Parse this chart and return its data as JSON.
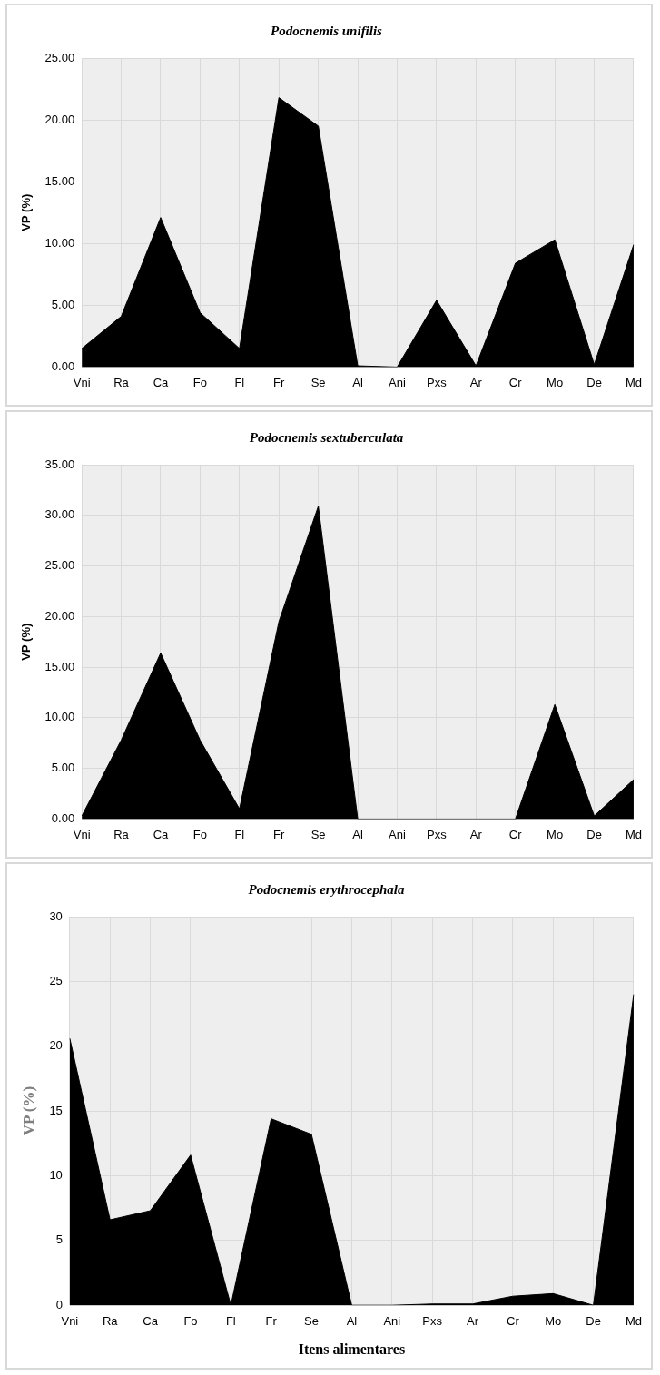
{
  "chart_data": [
    {
      "type": "area",
      "title": "Podocnemis unifilis",
      "ylabel": "VP (%)",
      "categories": [
        "Vni",
        "Ra",
        "Ca",
        "Fo",
        "Fl",
        "Fr",
        "Se",
        "Al",
        "Ani",
        "Pxs",
        "Ar",
        "Cr",
        "Mo",
        "De",
        "Md"
      ],
      "series": [
        {
          "color": "#000000",
          "values": [
            1.5,
            4.1,
            12.1,
            4.4,
            1.5,
            21.8,
            19.5,
            0.1,
            0,
            5.4,
            0.1,
            8.4,
            10.3,
            0.2,
            9.9
          ]
        }
      ],
      "ylim": [
        0,
        25
      ],
      "yticks": [
        {
          "value": 0,
          "label": "0.00"
        },
        {
          "value": 5,
          "label": "5.00"
        },
        {
          "value": 10,
          "label": "10.00"
        },
        {
          "value": 15,
          "label": "15.00"
        },
        {
          "value": 20,
          "label": "20.00"
        },
        {
          "value": 25,
          "label": "25.00"
        }
      ],
      "grid": true,
      "legend": false
    },
    {
      "type": "area",
      "title": "Podocnemis sextuberculata",
      "ylabel": "VP (%)",
      "categories": [
        "Vni",
        "Ra",
        "Ca",
        "Fo",
        "Fl",
        "Fr",
        "Se",
        "Al",
        "Ani",
        "Pxs",
        "Ar",
        "Cr",
        "Mo",
        "De",
        "Md"
      ],
      "series": [
        {
          "color": "#000000",
          "values": [
            0.3,
            7.8,
            16.4,
            7.8,
            1.0,
            19.5,
            30.9,
            0,
            0,
            0,
            0,
            0,
            11.3,
            0.3,
            3.9
          ]
        }
      ],
      "ylim": [
        0,
        35
      ],
      "yticks": [
        {
          "value": 0,
          "label": "0.00"
        },
        {
          "value": 5,
          "label": "5.00"
        },
        {
          "value": 10,
          "label": "10.00"
        },
        {
          "value": 15,
          "label": "15.00"
        },
        {
          "value": 20,
          "label": "20.00"
        },
        {
          "value": 25,
          "label": "25.00"
        },
        {
          "value": 30,
          "label": "30.00"
        },
        {
          "value": 35,
          "label": "35.00"
        }
      ],
      "grid": true,
      "legend": false
    },
    {
      "type": "area",
      "title": "Podocnemis erythrocephala",
      "ylabel": "VP (%)",
      "xlabel": "Itens alimentares",
      "categories": [
        "Vni",
        "Ra",
        "Ca",
        "Fo",
        "Fl",
        "Fr",
        "Se",
        "Al",
        "Ani",
        "Pxs",
        "Ar",
        "Cr",
        "Mo",
        "De",
        "Md"
      ],
      "series": [
        {
          "color": "#000000",
          "values": [
            20.6,
            6.6,
            7.3,
            11.6,
            0,
            14.4,
            13.2,
            0,
            0,
            0.1,
            0.1,
            0.7,
            0.9,
            0,
            24
          ]
        }
      ],
      "ylim": [
        0,
        30
      ],
      "yticks": [
        0,
        5,
        10,
        15,
        20,
        25,
        30
      ],
      "grid": true,
      "legend": false
    }
  ]
}
